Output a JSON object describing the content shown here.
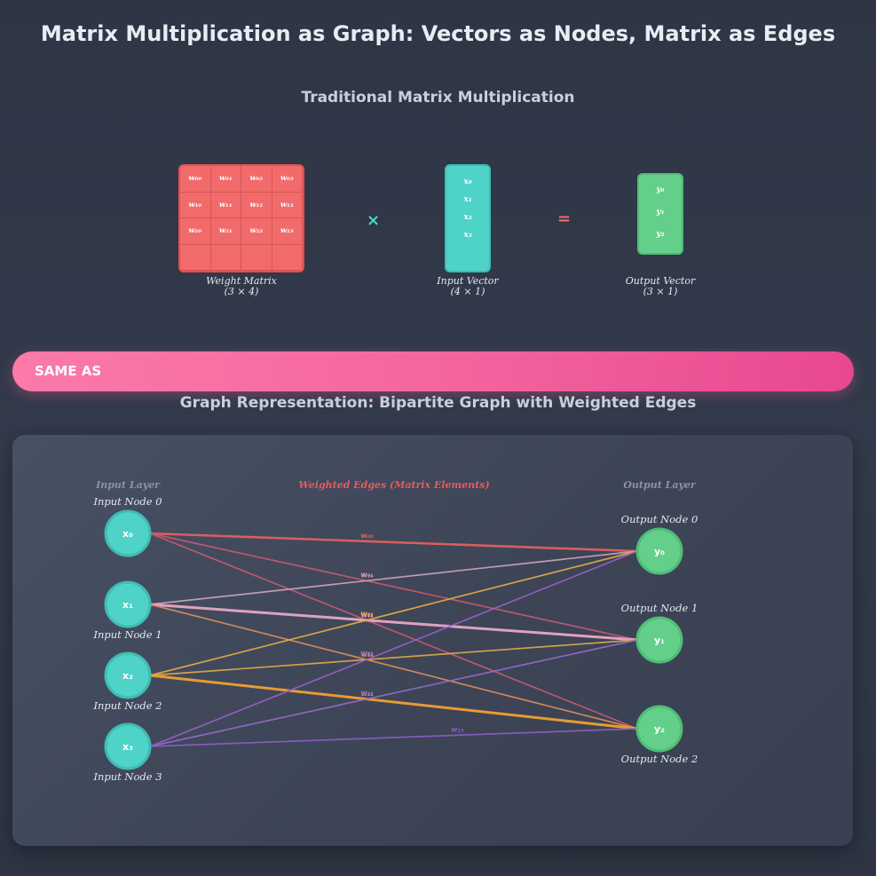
{
  "title": "Matrix Multiplication as Graph: Vectors as Nodes, Matrix as Edges",
  "traditional": {
    "heading": "Traditional Matrix Multiplication",
    "matrix_cells": [
      "w₀₀",
      "w₀₁",
      "w₀₂",
      "w₀₃",
      "w₁₀",
      "w₁₁",
      "w₁₂",
      "w₁₃",
      "w₂₀",
      "w₂₁",
      "w₂₂",
      "w₂₃",
      "",
      "",
      "",
      ""
    ],
    "matrix_caption": "Weight Matrix",
    "matrix_dims": "(3 × 4)",
    "times_symbol": "×",
    "equals_symbol": "=",
    "input_vector": [
      "x₀",
      "x₁",
      "x₂",
      "x₃"
    ],
    "input_caption": "Input Vector",
    "input_dims": "(4 × 1)",
    "output_vector": [
      "y₀",
      "y₁",
      "y₂"
    ],
    "output_caption": "Output Vector",
    "output_dims": "(3 × 1)"
  },
  "banner": {
    "label": "SAME AS"
  },
  "graph": {
    "heading": "Graph Representation: Bipartite Graph with Weighted Edges",
    "input_layer_label": "Input Layer",
    "edges_label": "Weighted Edges (Matrix Elements)",
    "output_layer_label": "Output Layer",
    "inputs": [
      {
        "symbol": "x₀",
        "label": "Input Node 0"
      },
      {
        "symbol": "x₁",
        "label": "Input Node 1"
      },
      {
        "symbol": "x₂",
        "label": "Input Node 2"
      },
      {
        "symbol": "x₃",
        "label": "Input Node 3"
      }
    ],
    "outputs": [
      {
        "symbol": "y₀",
        "label": "Output Node 0"
      },
      {
        "symbol": "y₁",
        "label": "Output Node 1"
      },
      {
        "symbol": "y₂",
        "label": "Output Node 2"
      }
    ],
    "edges": [
      {
        "from": 0,
        "to": 0,
        "label": "w₀₀",
        "color": "#e06060"
      },
      {
        "from": 0,
        "to": 1,
        "label": "w₁₀",
        "color": "#c25a6e"
      },
      {
        "from": 0,
        "to": 2,
        "label": "w₂₀",
        "color": "#c25a6e"
      },
      {
        "from": 1,
        "to": 0,
        "label": "w₀₁",
        "color": "#c9a0b4"
      },
      {
        "from": 1,
        "to": 1,
        "label": "w₁₁",
        "color": "#e8a8c4"
      },
      {
        "from": 1,
        "to": 2,
        "label": "w₂₁",
        "color": "#d68a58"
      },
      {
        "from": 2,
        "to": 0,
        "label": "w₀₂",
        "color": "#e0a848"
      },
      {
        "from": 2,
        "to": 1,
        "label": "w₁₂",
        "color": "#d8a84a"
      },
      {
        "from": 2,
        "to": 2,
        "label": "w₂₂",
        "color": "#f0a030"
      },
      {
        "from": 3,
        "to": 0,
        "label": "w₀₃",
        "color": "#9560c0"
      },
      {
        "from": 3,
        "to": 1,
        "label": "w₁₃",
        "color": "#9468c4"
      },
      {
        "from": 3,
        "to": 2,
        "label": "w₂₃",
        "color": "#8a5cc0"
      }
    ],
    "colors": {
      "input_node": "#4fd3c8",
      "input_node_border": "#3fbcb2",
      "output_node": "#63cf8a",
      "output_node_border": "#4fbd76",
      "edges_label": "#e85a5a"
    }
  }
}
